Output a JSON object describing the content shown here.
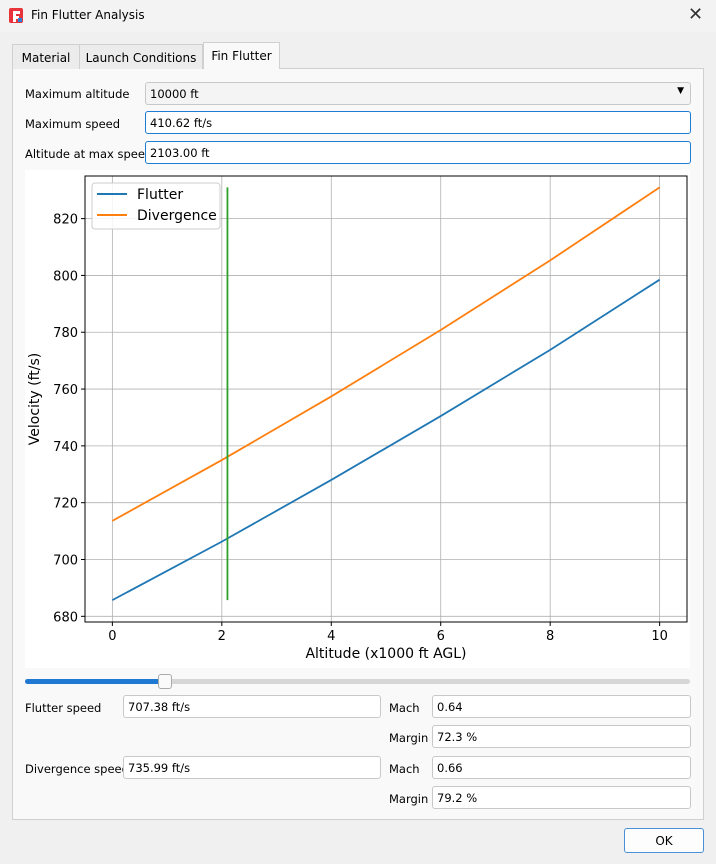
{
  "window": {
    "title": "Fin Flutter Analysis",
    "close_icon": "close-icon",
    "app_icon": "app-logo-icon"
  },
  "tabs": [
    {
      "label": "Material"
    },
    {
      "label": "Launch Conditions"
    },
    {
      "label": "Fin Flutter",
      "active": true
    }
  ],
  "form": {
    "max_altitude": {
      "label": "Maximum altitude",
      "value": "10000 ft"
    },
    "max_speed": {
      "label": "Maximum speed",
      "value": "410.62 ft/s"
    },
    "alt_at_max_speed": {
      "label": "Altitude at max speed",
      "value": "2103.00 ft"
    }
  },
  "chart_data": {
    "type": "line",
    "xlabel": "Altitude (x1000 ft AGL)",
    "ylabel": "Velocity (ft/s)",
    "xlim": [
      -0.5,
      10.5
    ],
    "ylim": [
      678,
      835
    ],
    "xticks": [
      0,
      2,
      4,
      6,
      8,
      10
    ],
    "yticks": [
      680,
      700,
      720,
      740,
      760,
      780,
      800,
      820
    ],
    "grid": true,
    "legend": "top-left",
    "x": [
      0,
      2,
      4,
      6,
      8,
      10
    ],
    "series": [
      {
        "name": "Flutter",
        "color": "#1f77b4",
        "values": [
          685.7,
          706.3,
          728.0,
          750.5,
          773.8,
          798.5
        ]
      },
      {
        "name": "Divergence",
        "color": "#ff7f0e",
        "values": [
          713.6,
          735.0,
          757.4,
          780.8,
          805.3,
          831.0
        ]
      }
    ],
    "marker_line": {
      "x": 2.103,
      "y": [
        685.7,
        831.0
      ],
      "color": "#2ca02c"
    }
  },
  "slider": {
    "fraction": 0.21
  },
  "results": {
    "flutter_label": "Flutter speed",
    "flutter_value": "707.38 ft/s",
    "flutter_mach_label": "Mach",
    "flutter_mach": "0.64",
    "flutter_margin_label": "Margin",
    "flutter_margin": "72.3 %",
    "divergence_label": "Divergence speed",
    "divergence_value": "735.99 ft/s",
    "divergence_mach_label": "Mach",
    "divergence_mach": "0.66",
    "divergence_margin_label": "Margin",
    "divergence_margin": "79.2 %"
  },
  "ok_label": "OK"
}
